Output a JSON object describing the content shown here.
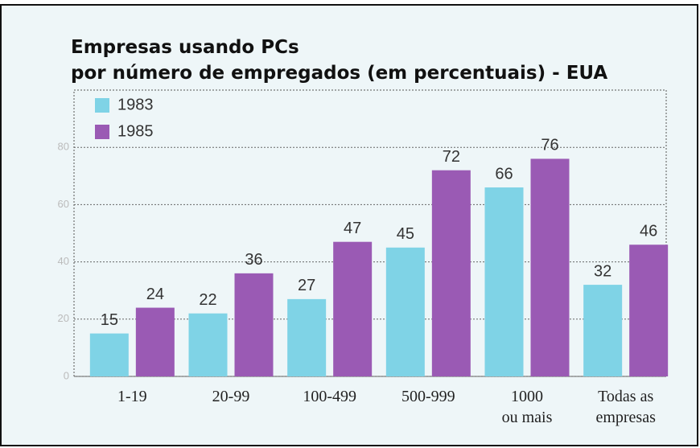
{
  "chart_data": {
    "type": "bar",
    "title": "Empresas usando PCs",
    "subtitle": "por número de empregados (em percentuais) - EUA",
    "categories": [
      "1-19",
      "20-99",
      "100-499",
      "500-999",
      "1000\nou mais",
      "Todas as\nempresas"
    ],
    "series": [
      {
        "name": "1983",
        "color": "#7fd3e6",
        "values": [
          15,
          22,
          27,
          45,
          66,
          32
        ]
      },
      {
        "name": "1985",
        "color": "#9a5ab4",
        "values": [
          24,
          36,
          47,
          72,
          76,
          46
        ]
      }
    ],
    "ylim": [
      0,
      100
    ],
    "yticks": [
      0,
      20,
      40,
      60,
      80
    ],
    "grid": true,
    "legend": "top-left"
  }
}
